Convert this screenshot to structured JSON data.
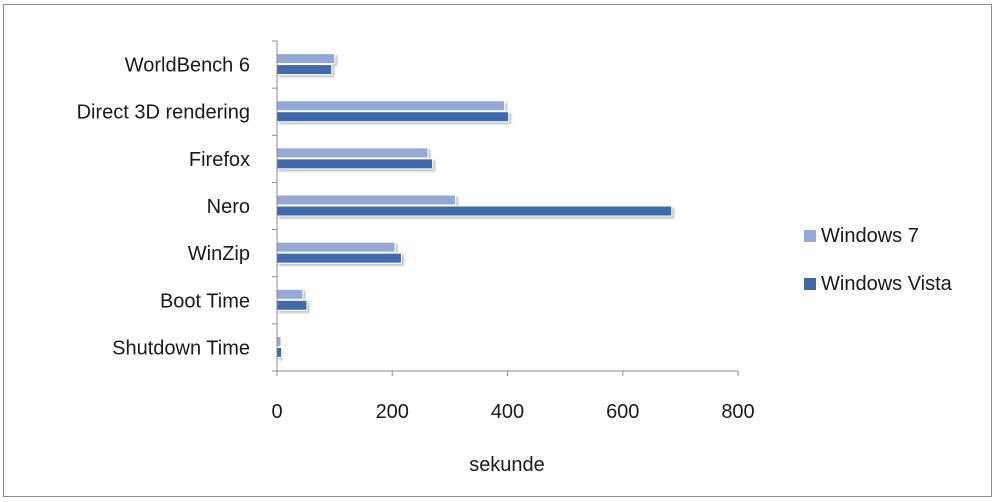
{
  "chart_data": {
    "type": "bar",
    "orientation": "horizontal",
    "categories": [
      "WorldBench 6",
      "Direct 3D rendering",
      "Firefox",
      "Nero",
      "WinZip",
      "Boot Time",
      "Shutdown Time"
    ],
    "series": [
      {
        "name": "Windows 7",
        "color": "#95a9d6",
        "values": [
          100,
          395,
          262,
          310,
          205,
          45,
          7
        ]
      },
      {
        "name": "Windows Vista",
        "color": "#3f6aa9",
        "values": [
          95,
          402,
          270,
          685,
          216,
          52,
          8
        ]
      }
    ],
    "xlabel": "sekunde",
    "xlim": [
      0,
      800
    ],
    "xticks": [
      0,
      200,
      400,
      600,
      800
    ],
    "grid": false,
    "legend_position": "right"
  }
}
